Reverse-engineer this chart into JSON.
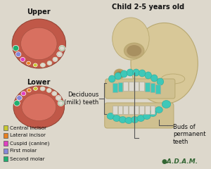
{
  "bg_color": "#ddd8cc",
  "title_left": "Upper",
  "title_lower": "Lower",
  "title_right": "Child 2-5 years old",
  "legend_items": [
    {
      "label": "Central incisor",
      "color": "#c8c832"
    },
    {
      "label": "Lateral incisor",
      "color": "#e88020"
    },
    {
      "label": "Cuspid (canine)",
      "color": "#e040c0"
    },
    {
      "label": "First molar",
      "color": "#8888d8"
    },
    {
      "label": "Second molar",
      "color": "#20b070"
    }
  ],
  "label_deciduous": "Deciduous\n(milk) teeth",
  "label_buds": "Buds of\npermanent\nteeth",
  "adam_text": "●A.D.A.M.",
  "skull_teal": "#3ec8b8",
  "bone_color": "#d8c898",
  "bone_edge": "#b8a870",
  "gum_color": "#c05848",
  "gum_inner": "#d87060",
  "palate_color": "#c06858",
  "tooth_white": "#dedad2",
  "tooth_edge": "#aaa898",
  "font_size_title": 7,
  "font_size_legend": 5.2,
  "font_size_label": 6.0,
  "font_size_adam": 6.5
}
